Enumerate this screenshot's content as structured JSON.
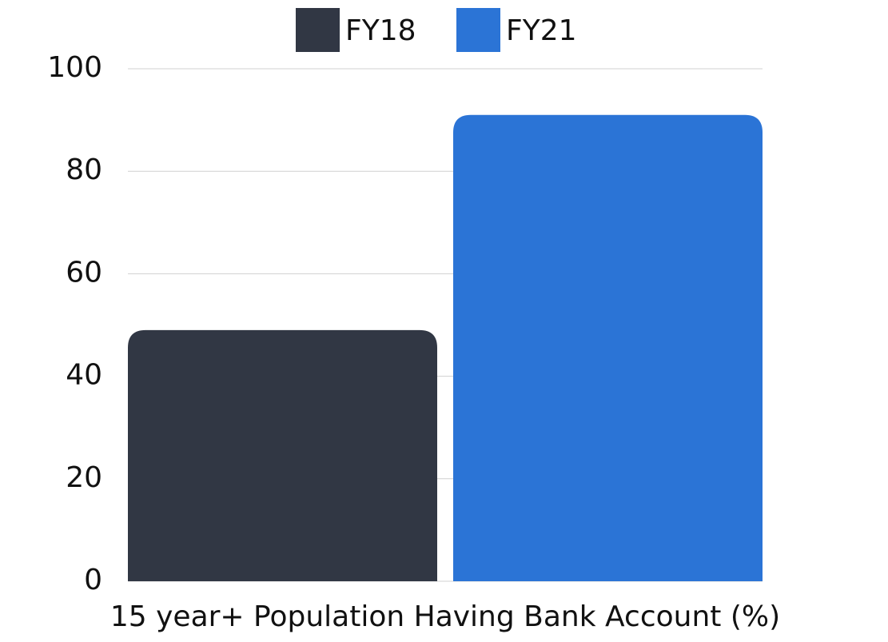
{
  "chart_data": {
    "type": "bar",
    "categories": [
      "15 year+ Population Having Bank Account (%)"
    ],
    "series": [
      {
        "name": "FY18",
        "color": "#313744",
        "values": [
          49
        ]
      },
      {
        "name": "FY21",
        "color": "#2b74d6",
        "values": [
          91
        ]
      }
    ],
    "ylim": [
      0,
      100
    ],
    "yticks": [
      0,
      20,
      40,
      60,
      80,
      100
    ],
    "grid": true,
    "legend": "top"
  }
}
